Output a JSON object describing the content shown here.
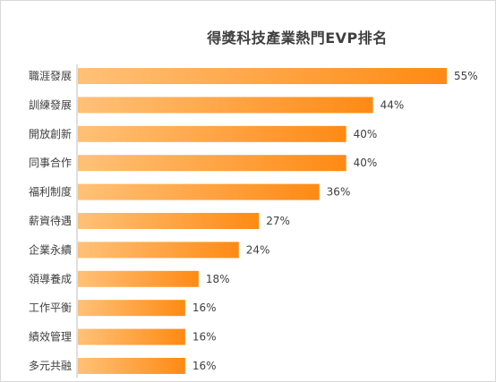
{
  "chart_data": {
    "type": "bar",
    "orientation": "horizontal",
    "title": "得獎科技產業熱門EVP排名",
    "categories": [
      "職涯發展",
      "訓練發展",
      "開放創新",
      "同事合作",
      "福利制度",
      "薪資待遇",
      "企業永續",
      "領導養成",
      "工作平衡",
      "績效管理",
      "多元共融"
    ],
    "values": [
      55,
      44,
      40,
      40,
      36,
      27,
      24,
      18,
      16,
      16,
      16
    ],
    "data_labels": [
      "55%",
      "44%",
      "40%",
      "40%",
      "36%",
      "27%",
      "24%",
      "18%",
      "16%",
      "16%",
      "16%"
    ],
    "unit": "%",
    "xlim": [
      0,
      55
    ],
    "grid": false,
    "legend": "none",
    "colors": {
      "bar_start": "#FFC178",
      "bar_end": "#FF8A14",
      "label_text": "#404040",
      "axis_line": "#bfbfbf"
    }
  }
}
